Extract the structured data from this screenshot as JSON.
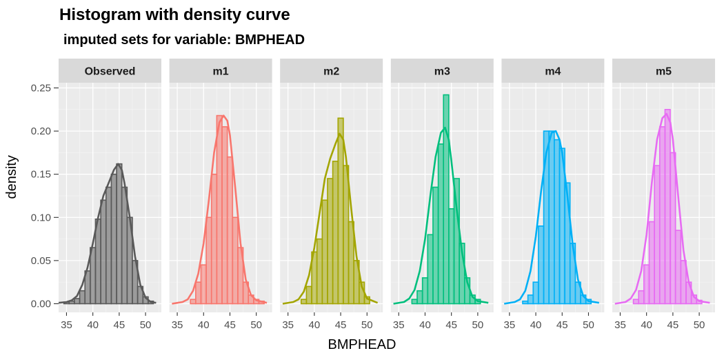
{
  "chart_data": {
    "type": "bar",
    "title": "Histogram with density curve",
    "subtitle": "imputed sets for variable:  BMPHEAD",
    "xlabel": "BMPHEAD",
    "ylabel": "density",
    "xlim": [
      33.5,
      53
    ],
    "ylim": [
      -0.01,
      0.256
    ],
    "x_ticks": [
      35,
      40,
      45,
      50
    ],
    "y_ticks": [
      0.0,
      0.05,
      0.1,
      0.15,
      0.2,
      0.25
    ],
    "y_tick_labels": [
      "0.00",
      "0.05",
      "0.10",
      "0.15",
      "0.20",
      "0.25"
    ],
    "grid": true,
    "legend": "none",
    "panels": [
      {
        "name": "Observed",
        "color": "#595959",
        "bins": [
          {
            "x0": 34.5,
            "x1": 35.5,
            "y": 0.002
          },
          {
            "x0": 35.5,
            "x1": 36.5,
            "y": 0.003
          },
          {
            "x0": 36.5,
            "x1": 37.5,
            "y": 0.006
          },
          {
            "x0": 37.5,
            "x1": 38.5,
            "y": 0.015
          },
          {
            "x0": 38.5,
            "x1": 39.5,
            "y": 0.038
          },
          {
            "x0": 39.5,
            "x1": 40.5,
            "y": 0.065
          },
          {
            "x0": 40.5,
            "x1": 41.5,
            "y": 0.098
          },
          {
            "x0": 41.5,
            "x1": 42.5,
            "y": 0.12
          },
          {
            "x0": 42.5,
            "x1": 43.5,
            "y": 0.135
          },
          {
            "x0": 43.5,
            "x1": 44.5,
            "y": 0.15
          },
          {
            "x0": 44.5,
            "x1": 45.5,
            "y": 0.162
          },
          {
            "x0": 45.5,
            "x1": 46.5,
            "y": 0.135
          },
          {
            "x0": 46.5,
            "x1": 47.5,
            "y": 0.1
          },
          {
            "x0": 47.5,
            "x1": 48.5,
            "y": 0.05
          },
          {
            "x0": 48.5,
            "x1": 49.5,
            "y": 0.02
          },
          {
            "x0": 49.5,
            "x1": 50.5,
            "y": 0.008
          },
          {
            "x0": 50.5,
            "x1": 51.5,
            "y": 0.003
          }
        ],
        "density": {
          "x": [
            33.5,
            35,
            36,
            37,
            38,
            39,
            40,
            41,
            42,
            43,
            44,
            44.8,
            45.5,
            46,
            47,
            48,
            49,
            50,
            51,
            52
          ],
          "y": [
            0.001,
            0.002,
            0.004,
            0.009,
            0.022,
            0.042,
            0.07,
            0.1,
            0.125,
            0.14,
            0.155,
            0.162,
            0.155,
            0.14,
            0.1,
            0.055,
            0.022,
            0.007,
            0.002,
            0.001
          ]
        }
      },
      {
        "name": "m1",
        "color": "#F8766D",
        "bins": [
          {
            "x0": 37.5,
            "x1": 38.5,
            "y": 0.005
          },
          {
            "x0": 38.5,
            "x1": 39.5,
            "y": 0.025
          },
          {
            "x0": 39.5,
            "x1": 40.5,
            "y": 0.045
          },
          {
            "x0": 40.5,
            "x1": 41.5,
            "y": 0.1
          },
          {
            "x0": 41.5,
            "x1": 42.5,
            "y": 0.15
          },
          {
            "x0": 42.5,
            "x1": 43.5,
            "y": 0.218
          },
          {
            "x0": 43.5,
            "x1": 44.5,
            "y": 0.205
          },
          {
            "x0": 44.5,
            "x1": 45.5,
            "y": 0.17
          },
          {
            "x0": 45.5,
            "x1": 46.5,
            "y": 0.1
          },
          {
            "x0": 46.5,
            "x1": 47.5,
            "y": 0.065
          },
          {
            "x0": 47.5,
            "x1": 48.5,
            "y": 0.025
          },
          {
            "x0": 48.5,
            "x1": 49.5,
            "y": 0.01
          },
          {
            "x0": 49.5,
            "x1": 50.5,
            "y": 0.005
          },
          {
            "x0": 50.5,
            "x1": 51.5,
            "y": 0.003
          }
        ],
        "density": {
          "x": [
            34,
            36,
            37,
            38,
            39,
            40,
            41,
            42,
            43,
            43.8,
            44.5,
            45,
            46,
            47,
            48,
            49,
            50,
            52
          ],
          "y": [
            0.0,
            0.002,
            0.005,
            0.015,
            0.035,
            0.07,
            0.12,
            0.175,
            0.21,
            0.218,
            0.212,
            0.195,
            0.135,
            0.07,
            0.028,
            0.01,
            0.004,
            0.001
          ]
        }
      },
      {
        "name": "m2",
        "color": "#A3A500",
        "bins": [
          {
            "x0": 37.5,
            "x1": 38.5,
            "y": 0.005
          },
          {
            "x0": 38.5,
            "x1": 39.5,
            "y": 0.02
          },
          {
            "x0": 39.5,
            "x1": 40.5,
            "y": 0.06
          },
          {
            "x0": 40.5,
            "x1": 41.5,
            "y": 0.075
          },
          {
            "x0": 41.5,
            "x1": 42.5,
            "y": 0.12
          },
          {
            "x0": 42.5,
            "x1": 43.5,
            "y": 0.145
          },
          {
            "x0": 43.5,
            "x1": 44.5,
            "y": 0.165
          },
          {
            "x0": 44.5,
            "x1": 45.5,
            "y": 0.215
          },
          {
            "x0": 45.5,
            "x1": 46.5,
            "y": 0.16
          },
          {
            "x0": 46.5,
            "x1": 47.5,
            "y": 0.095
          },
          {
            "x0": 47.5,
            "x1": 48.5,
            "y": 0.05
          },
          {
            "x0": 48.5,
            "x1": 49.5,
            "y": 0.025
          },
          {
            "x0": 49.5,
            "x1": 50.5,
            "y": 0.008
          }
        ],
        "density": {
          "x": [
            34,
            36,
            37,
            38,
            39,
            40,
            41,
            42,
            43,
            44,
            44.8,
            45.5,
            46,
            47,
            48,
            49,
            50,
            52
          ],
          "y": [
            0.0,
            0.002,
            0.005,
            0.014,
            0.033,
            0.065,
            0.105,
            0.145,
            0.168,
            0.185,
            0.197,
            0.19,
            0.17,
            0.11,
            0.055,
            0.02,
            0.006,
            0.001
          ]
        }
      },
      {
        "name": "m3",
        "color": "#00BF7D",
        "bins": [
          {
            "x0": 37.5,
            "x1": 38.5,
            "y": 0.005
          },
          {
            "x0": 38.5,
            "x1": 39.5,
            "y": 0.015
          },
          {
            "x0": 39.5,
            "x1": 40.5,
            "y": 0.03
          },
          {
            "x0": 40.5,
            "x1": 41.5,
            "y": 0.08
          },
          {
            "x0": 41.5,
            "x1": 42.5,
            "y": 0.135
          },
          {
            "x0": 42.5,
            "x1": 43.5,
            "y": 0.185
          },
          {
            "x0": 43.5,
            "x1": 44.5,
            "y": 0.242
          },
          {
            "x0": 44.5,
            "x1": 45.5,
            "y": 0.11
          },
          {
            "x0": 45.5,
            "x1": 46.5,
            "y": 0.145
          },
          {
            "x0": 46.5,
            "x1": 47.5,
            "y": 0.07
          },
          {
            "x0": 47.5,
            "x1": 48.5,
            "y": 0.03
          },
          {
            "x0": 48.5,
            "x1": 49.5,
            "y": 0.01
          },
          {
            "x0": 49.5,
            "x1": 50.5,
            "y": 0.005
          }
        ],
        "density": {
          "x": [
            34,
            36,
            37,
            38,
            39,
            40,
            41,
            42,
            43,
            43.8,
            44.5,
            45,
            46,
            47,
            48,
            49,
            50,
            52
          ],
          "y": [
            0.0,
            0.002,
            0.006,
            0.016,
            0.038,
            0.075,
            0.125,
            0.17,
            0.198,
            0.204,
            0.19,
            0.165,
            0.11,
            0.06,
            0.025,
            0.008,
            0.003,
            0.001
          ]
        }
      },
      {
        "name": "m4",
        "color": "#00B0F6",
        "bins": [
          {
            "x0": 37.5,
            "x1": 38.5,
            "y": 0.003
          },
          {
            "x0": 38.5,
            "x1": 39.5,
            "y": 0.01
          },
          {
            "x0": 39.5,
            "x1": 40.5,
            "y": 0.025
          },
          {
            "x0": 40.5,
            "x1": 41.5,
            "y": 0.09
          },
          {
            "x0": 41.5,
            "x1": 42.5,
            "y": 0.2
          },
          {
            "x0": 42.5,
            "x1": 43.5,
            "y": 0.2
          },
          {
            "x0": 43.5,
            "x1": 44.5,
            "y": 0.19
          },
          {
            "x0": 44.5,
            "x1": 45.5,
            "y": 0.18
          },
          {
            "x0": 45.5,
            "x1": 46.5,
            "y": 0.14
          },
          {
            "x0": 46.5,
            "x1": 47.5,
            "y": 0.07
          },
          {
            "x0": 47.5,
            "x1": 48.5,
            "y": 0.025
          },
          {
            "x0": 48.5,
            "x1": 49.5,
            "y": 0.01
          },
          {
            "x0": 49.5,
            "x1": 50.5,
            "y": 0.005
          }
        ],
        "density": {
          "x": [
            34,
            36,
            37,
            38,
            39,
            40,
            41,
            42,
            43,
            43.8,
            44.5,
            45,
            46,
            47,
            48,
            49,
            50,
            52
          ],
          "y": [
            0.0,
            0.002,
            0.005,
            0.015,
            0.038,
            0.078,
            0.13,
            0.175,
            0.198,
            0.2,
            0.19,
            0.175,
            0.125,
            0.068,
            0.028,
            0.009,
            0.003,
            0.001
          ]
        }
      },
      {
        "name": "m5",
        "color": "#E76BF3",
        "bins": [
          {
            "x0": 37.5,
            "x1": 38.5,
            "y": 0.005
          },
          {
            "x0": 38.5,
            "x1": 39.5,
            "y": 0.015
          },
          {
            "x0": 39.5,
            "x1": 40.5,
            "y": 0.045
          },
          {
            "x0": 40.5,
            "x1": 41.5,
            "y": 0.095
          },
          {
            "x0": 41.5,
            "x1": 42.5,
            "y": 0.16
          },
          {
            "x0": 42.5,
            "x1": 43.5,
            "y": 0.205
          },
          {
            "x0": 43.5,
            "x1": 44.5,
            "y": 0.225
          },
          {
            "x0": 44.5,
            "x1": 45.5,
            "y": 0.175
          },
          {
            "x0": 45.5,
            "x1": 46.5,
            "y": 0.085
          },
          {
            "x0": 46.5,
            "x1": 47.5,
            "y": 0.05
          },
          {
            "x0": 47.5,
            "x1": 48.5,
            "y": 0.025
          },
          {
            "x0": 48.5,
            "x1": 49.5,
            "y": 0.01
          },
          {
            "x0": 49.5,
            "x1": 50.5,
            "y": 0.004
          }
        ],
        "density": {
          "x": [
            34,
            36,
            37,
            38,
            39,
            40,
            41,
            42,
            43,
            43.8,
            44.5,
            45,
            46,
            47,
            48,
            49,
            50,
            52
          ],
          "y": [
            0.0,
            0.002,
            0.006,
            0.016,
            0.038,
            0.08,
            0.14,
            0.19,
            0.215,
            0.22,
            0.21,
            0.19,
            0.125,
            0.062,
            0.025,
            0.008,
            0.003,
            0.001
          ]
        }
      }
    ]
  }
}
